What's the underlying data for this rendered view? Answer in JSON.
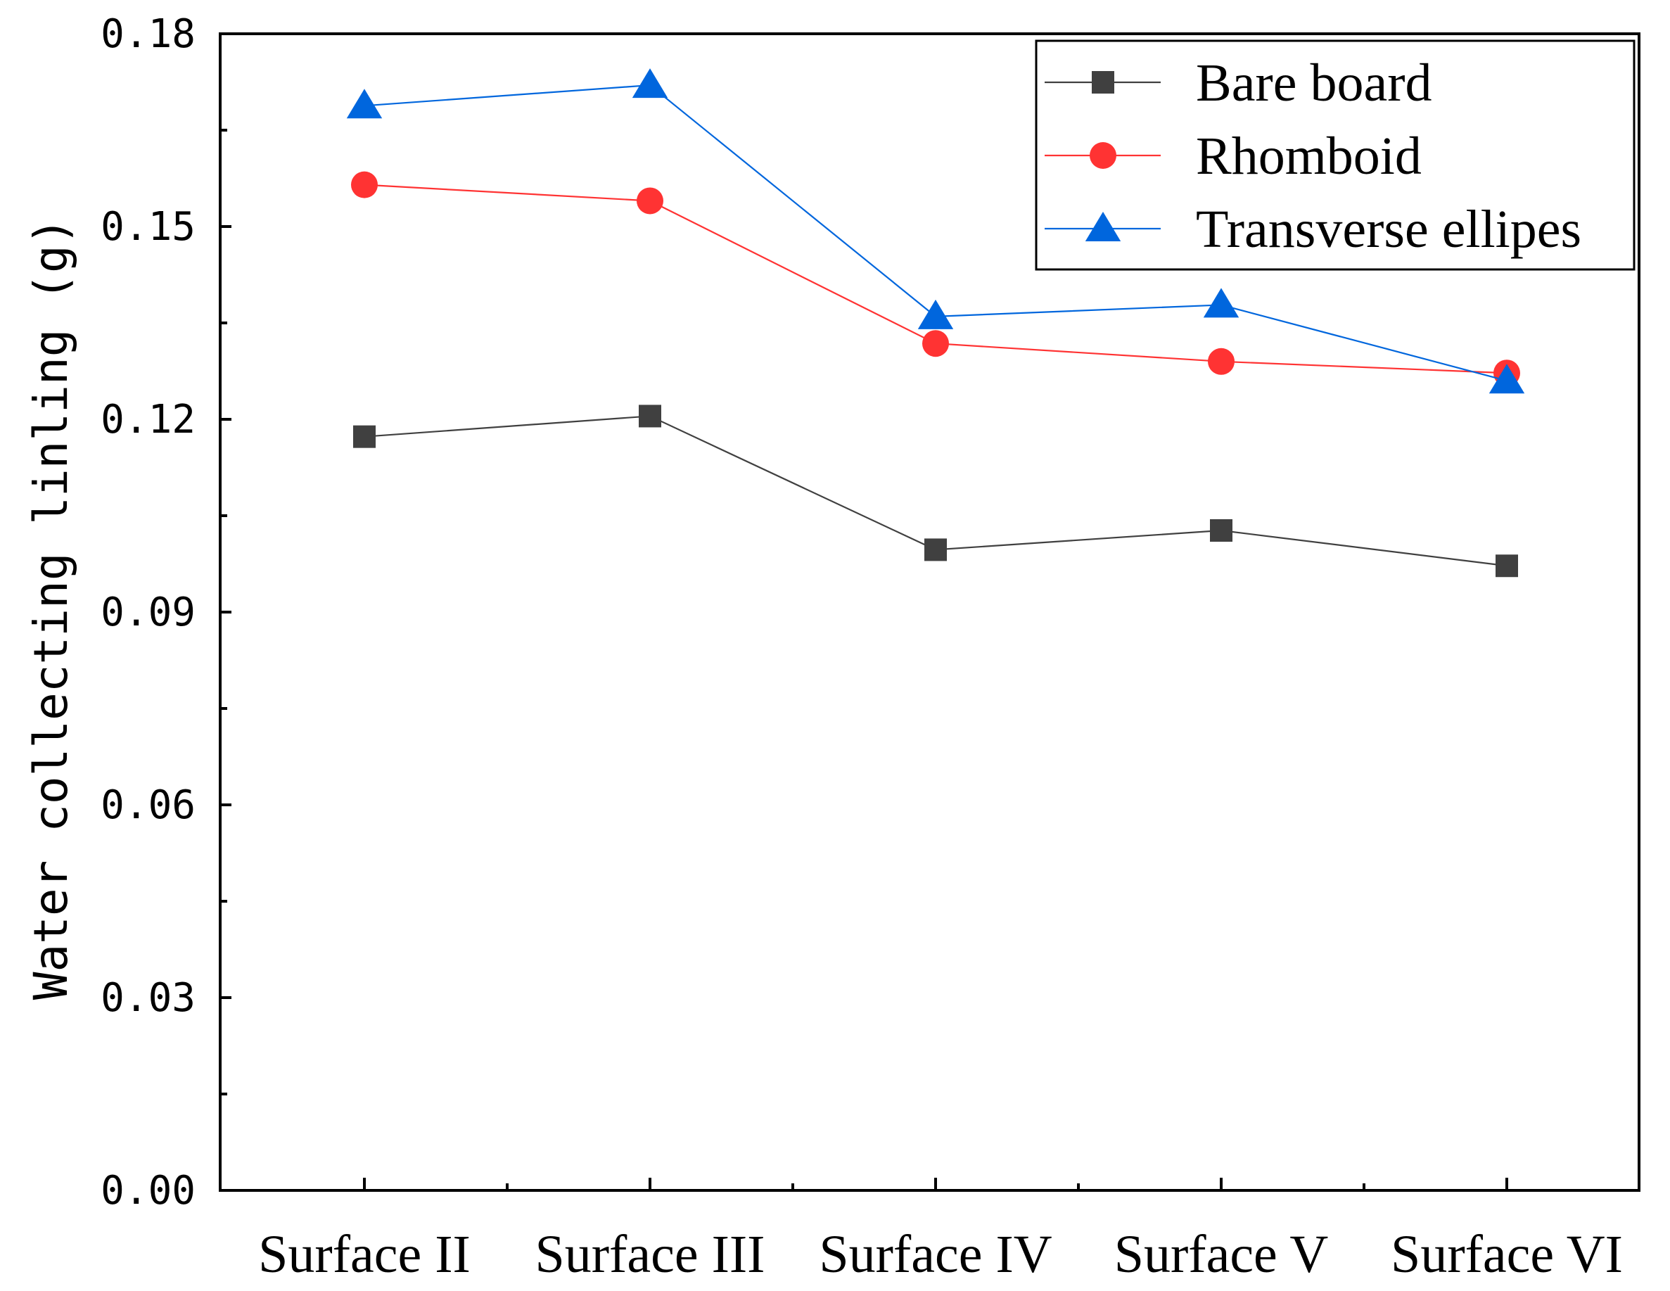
{
  "chart_data": {
    "type": "line",
    "title": "",
    "xlabel": "",
    "ylabel": "Water collecting linling (g)",
    "categories": [
      "Surface II",
      "Surface III",
      "Surface IV",
      "Surface V",
      "Surface VI"
    ],
    "ylim": [
      0,
      0.18
    ],
    "yticks": [
      "0.00",
      "0.03",
      "0.06",
      "0.09",
      "0.12",
      "0.15",
      "0.18"
    ],
    "ytick_values": [
      0,
      0.03,
      0.06,
      0.09,
      0.12,
      0.15,
      0.18
    ],
    "legend_position": "top-right",
    "grid": false,
    "series": [
      {
        "name": "Bare board",
        "marker": "square",
        "color": "#404040",
        "values": [
          0.1173,
          0.1205,
          0.0997,
          0.1027,
          0.0972
        ]
      },
      {
        "name": "Rhomboid",
        "marker": "circle",
        "color": "#ff3333",
        "values": [
          0.1565,
          0.154,
          0.1318,
          0.129,
          0.1272
        ]
      },
      {
        "name": "Transverse ellipes",
        "marker": "triangle",
        "color": "#0066dd",
        "values": [
          0.1688,
          0.172,
          0.136,
          0.1378,
          0.126
        ]
      }
    ]
  }
}
